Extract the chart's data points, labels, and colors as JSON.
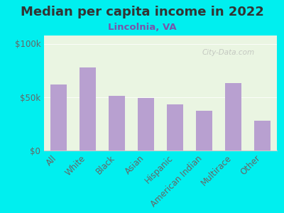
{
  "title": "Median per capita income in 2022",
  "subtitle": "Lincolnia, VA",
  "categories": [
    "All",
    "White",
    "Black",
    "Asian",
    "Hispanic",
    "American Indian",
    "Multirace",
    "Other"
  ],
  "values": [
    62000,
    78000,
    51000,
    49000,
    43000,
    37000,
    63000,
    28000
  ],
  "bar_color": "#b8a0d0",
  "background_outer": "#00EFEF",
  "background_inner": "#eaf5e2",
  "title_color": "#333333",
  "subtitle_color": "#7755aa",
  "tick_color": "#666666",
  "ylabel_ticks": [
    "$0",
    "$50k",
    "$100k"
  ],
  "ytick_vals": [
    0,
    50000,
    100000
  ],
  "ylim": [
    0,
    108000
  ],
  "watermark": "City-Data.com",
  "title_fontsize": 13,
  "subtitle_fontsize": 9.5,
  "tick_fontsize": 8.5
}
